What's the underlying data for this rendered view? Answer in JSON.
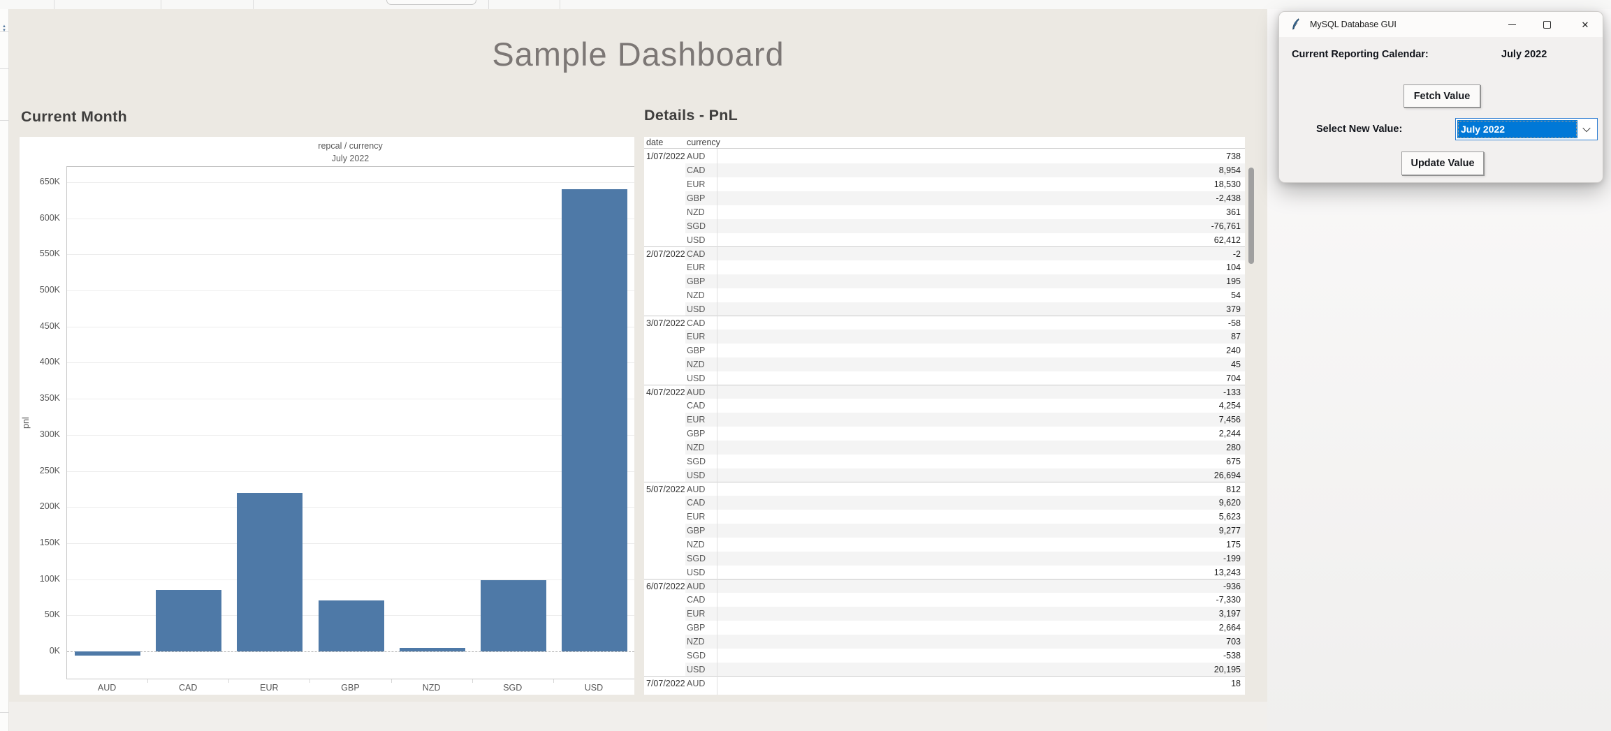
{
  "dashboard": {
    "title": "Sample Dashboard",
    "chart_section_title": "Current Month",
    "table_section_title": "Details - PnL"
  },
  "chart_data": {
    "type": "bar",
    "title": "repcal / currency",
    "subtitle": "July 2022",
    "ylabel": "pnl",
    "xlabel": "",
    "categories": [
      "AUD",
      "CAD",
      "EUR",
      "GBP",
      "NZD",
      "SGD",
      "USD"
    ],
    "values": [
      -6000,
      85000,
      220000,
      71000,
      5000,
      99000,
      640000
    ],
    "ylim": [
      -37000,
      711000
    ],
    "ytick_step": 50000,
    "ytick_min": 0,
    "ytick_max": 650000,
    "ytick_suffix": "K",
    "grid": true,
    "bar_color": "#4e79a7"
  },
  "table": {
    "columns": [
      "date",
      "currency"
    ],
    "groups": [
      {
        "date": "1/07/2022",
        "rows": [
          [
            "AUD",
            "738"
          ],
          [
            "CAD",
            "8,954"
          ],
          [
            "EUR",
            "18,530"
          ],
          [
            "GBP",
            "-2,438"
          ],
          [
            "NZD",
            "361"
          ],
          [
            "SGD",
            "-76,761"
          ],
          [
            "USD",
            "62,412"
          ]
        ]
      },
      {
        "date": "2/07/2022",
        "rows": [
          [
            "CAD",
            "-2"
          ],
          [
            "EUR",
            "104"
          ],
          [
            "GBP",
            "195"
          ],
          [
            "NZD",
            "54"
          ],
          [
            "USD",
            "379"
          ]
        ]
      },
      {
        "date": "3/07/2022",
        "rows": [
          [
            "CAD",
            "-58"
          ],
          [
            "EUR",
            "87"
          ],
          [
            "GBP",
            "240"
          ],
          [
            "NZD",
            "45"
          ],
          [
            "USD",
            "704"
          ]
        ]
      },
      {
        "date": "4/07/2022",
        "rows": [
          [
            "AUD",
            "-133"
          ],
          [
            "CAD",
            "4,254"
          ],
          [
            "EUR",
            "7,456"
          ],
          [
            "GBP",
            "2,244"
          ],
          [
            "NZD",
            "280"
          ],
          [
            "SGD",
            "675"
          ],
          [
            "USD",
            "26,694"
          ]
        ]
      },
      {
        "date": "5/07/2022",
        "rows": [
          [
            "AUD",
            "812"
          ],
          [
            "CAD",
            "9,620"
          ],
          [
            "EUR",
            "5,623"
          ],
          [
            "GBP",
            "9,277"
          ],
          [
            "NZD",
            "175"
          ],
          [
            "SGD",
            "-199"
          ],
          [
            "USD",
            "13,243"
          ]
        ]
      },
      {
        "date": "6/07/2022",
        "rows": [
          [
            "AUD",
            "-936"
          ],
          [
            "CAD",
            "-7,330"
          ],
          [
            "EUR",
            "3,197"
          ],
          [
            "GBP",
            "2,664"
          ],
          [
            "NZD",
            "703"
          ],
          [
            "SGD",
            "-538"
          ],
          [
            "USD",
            "20,195"
          ]
        ]
      },
      {
        "date": "7/07/2022",
        "rows": [
          [
            "AUD",
            "18"
          ]
        ]
      }
    ]
  },
  "mysql_gui": {
    "title": "MySQL Database GUI",
    "app_icon": "tk-feather-icon",
    "current_label": "Current Reporting Calendar:",
    "current_value": "July 2022",
    "fetch_button": "Fetch Value",
    "select_label": "Select New Value:",
    "select_value": "July 2022",
    "update_button": "Update Value",
    "accent_color": "#0078d7"
  }
}
